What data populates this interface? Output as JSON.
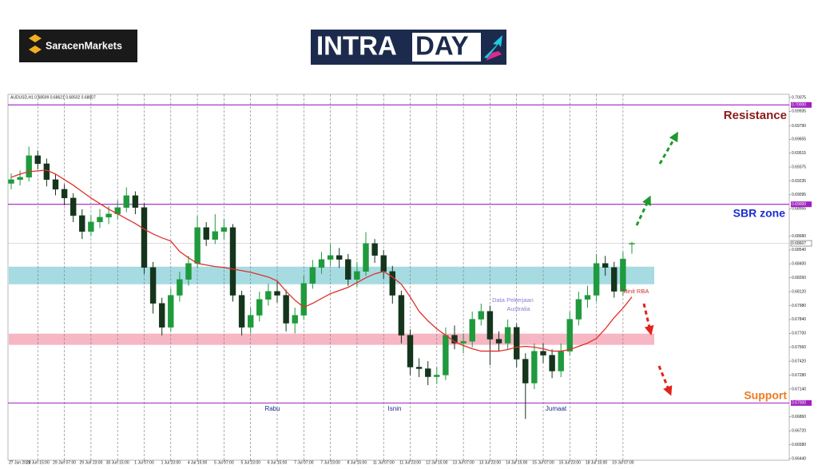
{
  "header": {
    "broker_logo": "SaracenMarkets",
    "brand_left": "INTRA",
    "brand_right": "DAY"
  },
  "chart_data": {
    "type": "candlestick",
    "info_label": "AUDUSD,H1 0.68599 0.68621 0.68502 0.68607",
    "categories": [
      "27 Jun 2022",
      null,
      null,
      "28 Jun 15:00",
      null,
      null,
      "29 Jun 07:00",
      null,
      null,
      "29 Jun 23:00",
      null,
      null,
      "30 Jun 15:00",
      null,
      null,
      "1 Jul 07:00",
      null,
      null,
      "1 Jul 23:00",
      null,
      null,
      "4 Jul 15:00",
      null,
      null,
      "5 Jul 07:00",
      null,
      null,
      "5 Jul 23:00",
      null,
      null,
      "6 Jul 15:00",
      null,
      null,
      "7 Jul 07:00",
      null,
      null,
      "7 Jul 23:00",
      null,
      null,
      "8 Jul 15:00",
      null,
      null,
      "11 Jul 07:00",
      null,
      null,
      "11 Jul 23:00",
      null,
      null,
      "12 Jul 15:00",
      null,
      null,
      "13 Jul 07:00",
      null,
      null,
      "13 Jul 23:00",
      null,
      null,
      "14 Jul 15:00",
      null,
      null,
      "15 Jul 07:00",
      null,
      null,
      "15 Jul 23:00",
      null,
      null,
      "18 Jul 15:00",
      null,
      null,
      "19 Jul 07:00",
      null
    ],
    "ohlc": [
      [
        0.6921,
        0.6931,
        0.6915,
        0.69248
      ],
      [
        0.69248,
        0.6934,
        0.6919,
        0.69272
      ],
      [
        0.69272,
        0.6958,
        0.6923,
        0.69489
      ],
      [
        0.69489,
        0.6954,
        0.6935,
        0.69408
      ],
      [
        0.69408,
        0.6946,
        0.6918,
        0.69248
      ],
      [
        0.69248,
        0.693,
        0.6909,
        0.69151
      ],
      [
        0.69151,
        0.692,
        0.6899,
        0.69063
      ],
      [
        0.69063,
        0.6911,
        0.6882,
        0.68886
      ],
      [
        0.68886,
        0.6895,
        0.6865,
        0.68726
      ],
      [
        0.68726,
        0.6889,
        0.6868,
        0.68822
      ],
      [
        0.68822,
        0.6895,
        0.6876,
        0.6887
      ],
      [
        0.6887,
        0.6898,
        0.688,
        0.68903
      ],
      [
        0.68903,
        0.6904,
        0.6885,
        0.68967
      ],
      [
        0.68967,
        0.6917,
        0.6892,
        0.69087
      ],
      [
        0.69087,
        0.6913,
        0.689,
        0.68967
      ],
      [
        0.68967,
        0.6901,
        0.683,
        0.68364
      ],
      [
        0.68364,
        0.6842,
        0.679,
        0.68003
      ],
      [
        0.68003,
        0.6806,
        0.6768,
        0.67762
      ],
      [
        0.67762,
        0.6815,
        0.6772,
        0.68084
      ],
      [
        0.68084,
        0.6832,
        0.6802,
        0.68244
      ],
      [
        0.68244,
        0.6848,
        0.6818,
        0.68405
      ],
      [
        0.68405,
        0.6888,
        0.6836,
        0.68766
      ],
      [
        0.68766,
        0.6882,
        0.6858,
        0.68646
      ],
      [
        0.68646,
        0.689,
        0.686,
        0.68726
      ],
      [
        0.68726,
        0.6885,
        0.6865,
        0.68766
      ],
      [
        0.68766,
        0.688,
        0.6802,
        0.68084
      ],
      [
        0.68084,
        0.6813,
        0.6768,
        0.67762
      ],
      [
        0.67762,
        0.6796,
        0.677,
        0.67883
      ],
      [
        0.67883,
        0.6812,
        0.6782,
        0.68043
      ],
      [
        0.68043,
        0.682,
        0.6798,
        0.68124
      ],
      [
        0.68124,
        0.6822,
        0.6801,
        0.68084
      ],
      [
        0.68084,
        0.6814,
        0.6772,
        0.67803
      ],
      [
        0.67803,
        0.6796,
        0.677,
        0.67883
      ],
      [
        0.67883,
        0.6828,
        0.6784,
        0.68204
      ],
      [
        0.68204,
        0.6844,
        0.6815,
        0.68364
      ],
      [
        0.68364,
        0.6852,
        0.683,
        0.68445
      ],
      [
        0.68445,
        0.686,
        0.6838,
        0.68485
      ],
      [
        0.68485,
        0.6856,
        0.6836,
        0.68445
      ],
      [
        0.68445,
        0.685,
        0.6818,
        0.68244
      ],
      [
        0.68244,
        0.6842,
        0.6817,
        0.68324
      ],
      [
        0.68324,
        0.6872,
        0.6828,
        0.68605
      ],
      [
        0.68605,
        0.6865,
        0.6841,
        0.68485
      ],
      [
        0.68485,
        0.6854,
        0.6825,
        0.68324
      ],
      [
        0.68324,
        0.6838,
        0.68,
        0.68084
      ],
      [
        0.68084,
        0.6813,
        0.676,
        0.67682
      ],
      [
        0.67682,
        0.6774,
        0.6728,
        0.67361
      ],
      [
        0.67361,
        0.6745,
        0.6726,
        0.67345
      ],
      [
        0.67345,
        0.6742,
        0.6718,
        0.67264
      ],
      [
        0.67264,
        0.6736,
        0.6719,
        0.67281
      ],
      [
        0.67281,
        0.6776,
        0.6723,
        0.67682
      ],
      [
        0.67682,
        0.6778,
        0.6754,
        0.67602
      ],
      [
        0.67602,
        0.677,
        0.675,
        0.6762
      ],
      [
        0.6762,
        0.6792,
        0.6756,
        0.67843
      ],
      [
        0.67843,
        0.68,
        0.6778,
        0.67923
      ],
      [
        0.67923,
        0.6798,
        0.6738,
        0.67642
      ],
      [
        0.67642,
        0.6772,
        0.6752,
        0.67602
      ],
      [
        0.67602,
        0.6784,
        0.6754,
        0.67762
      ],
      [
        0.67762,
        0.678,
        0.6736,
        0.67441
      ],
      [
        0.67441,
        0.675,
        0.6684,
        0.672
      ],
      [
        0.672,
        0.676,
        0.6714,
        0.67521
      ],
      [
        0.67521,
        0.676,
        0.674,
        0.67481
      ],
      [
        0.67481,
        0.6754,
        0.6725,
        0.67321
      ],
      [
        0.67321,
        0.676,
        0.6726,
        0.67521
      ],
      [
        0.67521,
        0.6792,
        0.6748,
        0.67843
      ],
      [
        0.67843,
        0.6812,
        0.6778,
        0.68043
      ],
      [
        0.68043,
        0.6818,
        0.6796,
        0.68084
      ],
      [
        0.68084,
        0.685,
        0.6802,
        0.68405
      ],
      [
        0.68405,
        0.6848,
        0.6828,
        0.68364
      ],
      [
        0.68364,
        0.6842,
        0.6806,
        0.68124
      ],
      [
        0.68124,
        0.6852,
        0.6808,
        0.6845
      ],
      [
        0.68599,
        0.68621,
        0.68502,
        0.68607
      ]
    ],
    "up_color": "#1f9a3c",
    "down_color": "#14351c",
    "ma": [
      0.69272,
      0.69304,
      0.69328,
      0.69336,
      0.69344,
      0.69304,
      0.69248,
      0.69192,
      0.69127,
      0.69063,
      0.69007,
      0.68951,
      0.68903,
      0.68854,
      0.68806,
      0.6875,
      0.68701,
      0.68662,
      0.6863,
      0.68525,
      0.68461,
      0.68405,
      0.68389,
      0.68373,
      0.68364,
      0.68348,
      0.68332,
      0.68316,
      0.68292,
      0.68268,
      0.68228,
      0.68124,
      0.68035,
      0.67963,
      0.68003,
      0.68052,
      0.681,
      0.68132,
      0.68164,
      0.68212,
      0.6826,
      0.683,
      0.68324,
      0.68268,
      0.68196,
      0.68067,
      0.67923,
      0.67827,
      0.67746,
      0.67682,
      0.67618,
      0.67578,
      0.67546,
      0.67522,
      0.67522,
      0.67522,
      0.67538,
      0.67562,
      0.6757,
      0.67562,
      0.67546,
      0.67522,
      0.67522,
      0.67538,
      0.6757,
      0.67602,
      0.6765,
      0.67746,
      0.67859,
      0.67955,
      0.68067
    ],
    "ma_color": "#e0302a",
    "ylim": [
      0.6644,
      0.70075
    ],
    "yticks": [
      0.70075,
      0.69935,
      {
        "value": 0.6979,
        "label": "0.69790"
      },
      0.69655,
      0.69515,
      0.69375,
      0.69235,
      0.69095,
      0.68955,
      {
        "value": 0.6868,
        "label": "0.68680"
      },
      {
        "value": 0.6854,
        "label": "0.68540"
      },
      {
        "value": 0.684,
        "label": "0.68400"
      },
      {
        "value": 0.6826,
        "label": "0.68260"
      },
      {
        "value": 0.6812,
        "label": "0.68120"
      },
      {
        "value": 0.6798,
        "label": "0.67980"
      },
      {
        "value": 0.6784,
        "label": "0.67840"
      },
      {
        "value": 0.677,
        "label": "0.67700"
      },
      {
        "value": 0.6756,
        "label": "0.67560"
      },
      {
        "value": 0.6742,
        "label": "0.67420"
      },
      {
        "value": 0.6728,
        "label": "0.67280"
      },
      {
        "value": 0.6714,
        "label": "0.67140"
      },
      {
        "value": 0.6686,
        "label": "0.66860"
      },
      {
        "value": 0.6672,
        "label": "0.66720"
      },
      {
        "value": 0.6658,
        "label": "0.66580"
      },
      {
        "value": 0.6644,
        "label": "0.66440"
      }
    ],
    "levels": [
      {
        "value": 0.7,
        "label": "0.70000"
      },
      {
        "value": 0.69,
        "label": "0.69000"
      },
      {
        "value": 0.67,
        "label": "0.67000"
      }
    ],
    "level_color": "#a020c0",
    "current_price": 0.68607,
    "zones": [
      {
        "from": 0.68195,
        "to": 0.68372,
        "color": "#a6dbe2"
      },
      {
        "from": 0.67585,
        "to": 0.67698,
        "color": "#f7b6c4"
      }
    ],
    "grid": true,
    "annotations": {
      "resistance": "Resistance",
      "sbr_zone": "SBR zone",
      "support": "Support",
      "data_pekerjaan": [
        "Data Pekerjaan",
        "Australia"
      ],
      "minit_rba": "Minit RBA",
      "rabu": "Rabu",
      "isnin": "Isnin",
      "jumaat": "Jumaat"
    }
  }
}
